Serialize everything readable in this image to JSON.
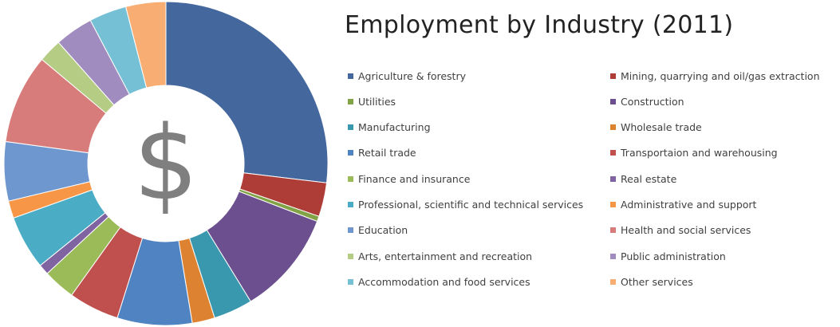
{
  "chart_data": {
    "type": "pie",
    "title": "Employment by Industry (2011)",
    "center_symbol": "$",
    "colors": {
      "symbol": "#7f7f7f"
    },
    "categories": [
      "Agriculture & forestry",
      "Mining, quarrying and oil/gas extraction",
      "Utilities",
      "Construction",
      "Manufacturing",
      "Wholesale trade",
      "Retail trade",
      "Transportaion and warehousing",
      "Finance and insurance",
      "Real estate",
      "Professional, scientific and technical services",
      "Administrative and support",
      "Education",
      "Health and social services",
      "Arts, entertainment and recreation",
      "Public administration",
      "Accommodation and food services",
      "Other services"
    ],
    "values": [
      31.0,
      3.9,
      0.6,
      12.0,
      4.5,
      2.6,
      8.6,
      5.8,
      3.7,
      1.2,
      6.2,
      2.0,
      6.8,
      10.3,
      2.7,
      4.4,
      4.3,
      4.6
    ],
    "series_colors": [
      "#44679e",
      "#ae3c37",
      "#81a345",
      "#6b4f8f",
      "#3a98ae",
      "#dd8230",
      "#4f83c2",
      "#c0504d",
      "#9bbb59",
      "#8064a2",
      "#4bacc6",
      "#f79646",
      "#6f97cf",
      "#d77c7a",
      "#b5cc85",
      "#a08cbf",
      "#76c0d6",
      "#f8ad72"
    ],
    "legend_position": "right"
  }
}
